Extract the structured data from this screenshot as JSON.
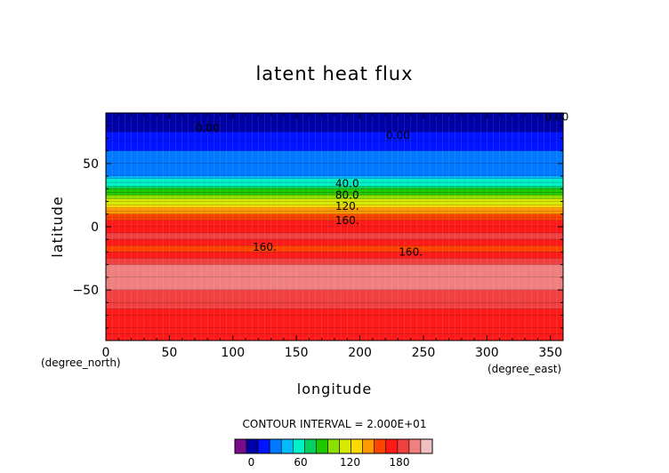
{
  "chart_data": {
    "type": "heatmap",
    "title": "latent heat flux",
    "xlabel": "longitude",
    "ylabel": "latitude",
    "x_unit": "(degree_east)",
    "y_unit": "(degree_north)",
    "xlim": [
      0,
      360
    ],
    "ylim": [
      -90,
      90
    ],
    "x_ticks": [
      "0",
      "50",
      "100",
      "150",
      "200",
      "250",
      "300",
      "350"
    ],
    "y_ticks": [
      "50",
      "0",
      "−50"
    ],
    "contour_interval_label": "CONTOUR INTERVAL = 2.000E+01",
    "contour_labels": [
      {
        "text": "0.00",
        "lon": 355,
        "lat": 87
      },
      {
        "text": "0.00",
        "lon": 80,
        "lat": 78
      },
      {
        "text": "0.00",
        "lon": 230,
        "lat": 72
      },
      {
        "text": "40.0",
        "lon": 190,
        "lat": 34
      },
      {
        "text": "80.0",
        "lon": 190,
        "lat": 25
      },
      {
        "text": "120.",
        "lon": 190,
        "lat": 16
      },
      {
        "text": "160.",
        "lon": 190,
        "lat": 5
      },
      {
        "text": "160.",
        "lon": 125,
        "lat": -16
      },
      {
        "text": "160.",
        "lon": 240,
        "lat": -20
      }
    ],
    "latitude_profile": {
      "lat": [
        90,
        87,
        83,
        75,
        68,
        60,
        50,
        40,
        38,
        35,
        32,
        30,
        27,
        25,
        22,
        20,
        17,
        15,
        12,
        10,
        7,
        5,
        0,
        -5,
        -10,
        -15,
        -20,
        -25,
        -30,
        -40,
        -50,
        -60,
        -65,
        -70,
        -80,
        -85,
        -90
      ],
      "value": [
        20,
        -5,
        0,
        0,
        20,
        25,
        30,
        40,
        50,
        60,
        70,
        80,
        90,
        100,
        110,
        120,
        130,
        140,
        150,
        160,
        170,
        175,
        180,
        190,
        200,
        170,
        170,
        200,
        205,
        205,
        205,
        200,
        190,
        185,
        185,
        170,
        185
      ]
    },
    "colorbar": {
      "tick_labels": [
        "0",
        "60",
        "120",
        "180"
      ],
      "tick_values": [
        0,
        60,
        120,
        180
      ],
      "levels": [
        -20,
        0,
        20,
        40,
        60,
        80,
        100,
        120,
        140,
        160,
        180,
        200,
        220
      ],
      "colors": [
        "#7a0c8c",
        "#0000a8",
        "#0014ff",
        "#0078ff",
        "#00bcff",
        "#00f0c8",
        "#00d060",
        "#20c800",
        "#8ce000",
        "#d8e800",
        "#ffd800",
        "#ff9a00",
        "#ff4400",
        "#ff1a1a",
        "#f04040",
        "#f08080",
        "#f0c0c0"
      ],
      "color_start": -20,
      "color_step": 15
    }
  }
}
